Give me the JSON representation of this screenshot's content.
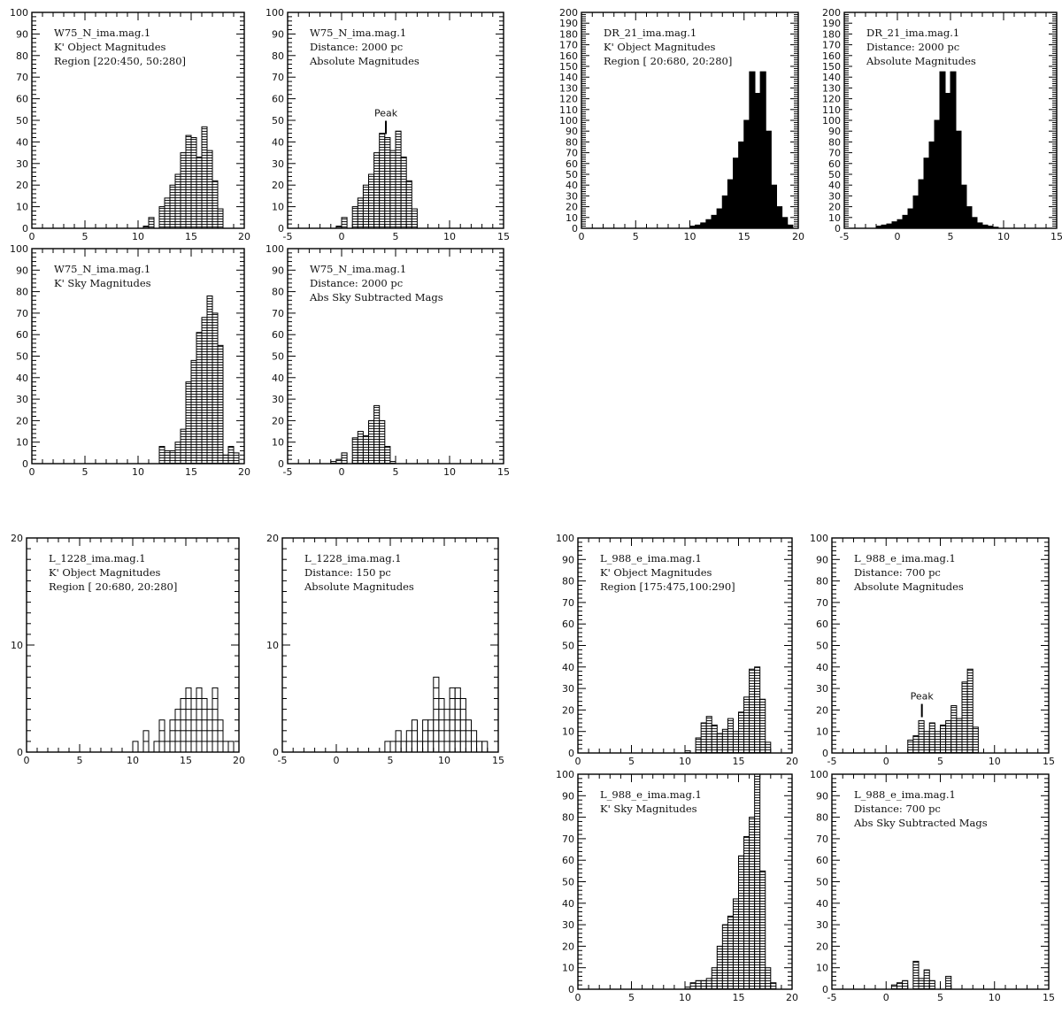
{
  "chart_data": [
    {
      "type": "bar",
      "style": "hatched",
      "lines": [
        "W75_N_ima.mag.1",
        "K' Object Magnitudes",
        "Region [220:450, 50:280]"
      ],
      "xlim": [
        0,
        20
      ],
      "ylim": [
        0,
        100
      ],
      "xticks": [
        0,
        5,
        10,
        15,
        20
      ],
      "yticks": [
        0,
        10,
        20,
        30,
        40,
        50,
        60,
        70,
        80,
        90,
        100
      ],
      "bin_width": 0.5,
      "bins": [
        [
          10.5,
          1
        ],
        [
          11,
          5
        ],
        [
          12,
          10
        ],
        [
          12.5,
          14
        ],
        [
          13,
          20
        ],
        [
          13.5,
          25
        ],
        [
          14,
          35
        ],
        [
          14.5,
          43
        ],
        [
          15,
          42
        ],
        [
          15.5,
          33
        ],
        [
          16,
          47
        ],
        [
          16.5,
          36
        ],
        [
          17,
          22
        ],
        [
          17.5,
          9
        ]
      ]
    },
    {
      "type": "bar",
      "style": "hatched",
      "lines": [
        "W75_N_ima.mag.1",
        "Distance: 2000   pc",
        "Absolute Magnitudes"
      ],
      "xlim": [
        -5,
        15
      ],
      "ylim": [
        0,
        100
      ],
      "xticks": [
        -5,
        0,
        5,
        10,
        15
      ],
      "yticks": [
        0,
        10,
        20,
        30,
        40,
        50,
        60,
        70,
        80,
        90,
        100
      ],
      "bin_width": 0.5,
      "bins": [
        [
          -0.5,
          1
        ],
        [
          0,
          5
        ],
        [
          1,
          10
        ],
        [
          1.5,
          14
        ],
        [
          2,
          20
        ],
        [
          2.5,
          25
        ],
        [
          3,
          35
        ],
        [
          3.5,
          44
        ],
        [
          4,
          42
        ],
        [
          4.5,
          36
        ],
        [
          5,
          45
        ],
        [
          5.5,
          33
        ],
        [
          6,
          22
        ],
        [
          6.5,
          9
        ]
      ],
      "peak": {
        "x": 4.1,
        "label": "Peak"
      }
    },
    {
      "type": "bar",
      "style": "solid",
      "lines": [
        "DR_21_ima.mag.1",
        "K' Object Magnitudes",
        "Region [ 20:680, 20:280]"
      ],
      "xlim": [
        0,
        20
      ],
      "ylim": [
        0,
        200
      ],
      "xticks": [
        0,
        5,
        10,
        15,
        20
      ],
      "yticks": [
        0,
        10,
        20,
        30,
        40,
        50,
        60,
        70,
        80,
        90,
        100,
        110,
        120,
        130,
        140,
        150,
        160,
        170,
        180,
        190,
        200
      ],
      "bin_width": 0.5,
      "bins": [
        [
          10,
          2
        ],
        [
          10.5,
          3
        ],
        [
          11,
          5
        ],
        [
          11.5,
          8
        ],
        [
          12,
          12
        ],
        [
          12.5,
          18
        ],
        [
          13,
          30
        ],
        [
          13.5,
          45
        ],
        [
          14,
          65
        ],
        [
          14.5,
          80
        ],
        [
          15,
          100
        ],
        [
          15.5,
          145
        ],
        [
          16,
          125
        ],
        [
          16.5,
          145
        ],
        [
          17,
          90
        ],
        [
          17.5,
          40
        ],
        [
          18,
          20
        ],
        [
          18.5,
          10
        ],
        [
          19,
          3
        ]
      ]
    },
    {
      "type": "bar",
      "style": "solid",
      "lines": [
        "DR_21_ima.mag.1",
        "Distance: 2000   pc",
        "Absolute Magnitudes"
      ],
      "xlim": [
        -5,
        15
      ],
      "ylim": [
        0,
        200
      ],
      "xticks": [
        -5,
        0,
        5,
        10,
        15
      ],
      "yticks": [
        0,
        10,
        20,
        30,
        40,
        50,
        60,
        70,
        80,
        90,
        100,
        110,
        120,
        130,
        140,
        150,
        160,
        170,
        180,
        190,
        200
      ],
      "bin_width": 0.5,
      "bins": [
        [
          -2,
          2
        ],
        [
          -1.5,
          3
        ],
        [
          -1,
          4
        ],
        [
          -0.5,
          6
        ],
        [
          0,
          8
        ],
        [
          0.5,
          12
        ],
        [
          1,
          18
        ],
        [
          1.5,
          30
        ],
        [
          2,
          45
        ],
        [
          2.5,
          65
        ],
        [
          3,
          80
        ],
        [
          3.5,
          100
        ],
        [
          4,
          145
        ],
        [
          4.5,
          125
        ],
        [
          5,
          145
        ],
        [
          5.5,
          90
        ],
        [
          6,
          40
        ],
        [
          6.5,
          20
        ],
        [
          7,
          10
        ],
        [
          7.5,
          5
        ],
        [
          8,
          3
        ],
        [
          8.5,
          2
        ],
        [
          9,
          1
        ]
      ]
    },
    {
      "type": "bar",
      "style": "hatched",
      "lines": [
        "W75_N_ima.mag.1",
        "K' Sky Magnitudes"
      ],
      "xlim": [
        0,
        20
      ],
      "ylim": [
        0,
        100
      ],
      "xticks": [
        0,
        5,
        10,
        15,
        20
      ],
      "yticks": [
        0,
        10,
        20,
        30,
        40,
        50,
        60,
        70,
        80,
        90,
        100
      ],
      "bin_width": 0.5,
      "bins": [
        [
          12,
          8
        ],
        [
          12.5,
          6
        ],
        [
          13,
          6
        ],
        [
          13.5,
          10
        ],
        [
          14,
          16
        ],
        [
          14.5,
          38
        ],
        [
          15,
          48
        ],
        [
          15.5,
          61
        ],
        [
          16,
          68
        ],
        [
          16.5,
          78
        ],
        [
          17,
          70
        ],
        [
          17.5,
          55
        ],
        [
          18,
          4
        ],
        [
          18.5,
          8
        ],
        [
          19,
          5
        ]
      ]
    },
    {
      "type": "bar",
      "style": "hatched",
      "lines": [
        "W75_N_ima.mag.1",
        "Distance: 2000   pc",
        "Abs Sky Subtracted Mags"
      ],
      "xlim": [
        -5,
        15
      ],
      "ylim": [
        0,
        100
      ],
      "xticks": [
        -5,
        0,
        5,
        10,
        15
      ],
      "yticks": [
        0,
        10,
        20,
        30,
        40,
        50,
        60,
        70,
        80,
        90,
        100
      ],
      "bin_width": 0.5,
      "bins": [
        [
          -1,
          1
        ],
        [
          -0.5,
          2
        ],
        [
          0,
          5
        ],
        [
          1,
          12
        ],
        [
          1.5,
          15
        ],
        [
          2,
          13
        ],
        [
          2.5,
          20
        ],
        [
          3,
          27
        ],
        [
          3.5,
          20
        ],
        [
          4,
          8
        ],
        [
          4.5,
          1
        ]
      ]
    },
    {
      "type": "bar",
      "style": "open",
      "lines": [
        "L_1228_ima.mag.1",
        "K' Object Magnitudes",
        "Region [ 20:680, 20:280]"
      ],
      "xlim": [
        0,
        20
      ],
      "ylim": [
        0,
        20
      ],
      "xticks": [
        0,
        5,
        10,
        15,
        20
      ],
      "yticks": [
        0,
        10,
        20
      ],
      "bin_width": 0.5,
      "bins": [
        [
          10,
          1
        ],
        [
          11,
          2
        ],
        [
          12,
          1
        ],
        [
          12.5,
          3
        ],
        [
          13,
          1
        ],
        [
          13.5,
          3
        ],
        [
          14,
          4
        ],
        [
          14.5,
          5
        ],
        [
          15,
          6
        ],
        [
          15.5,
          5
        ],
        [
          16,
          6
        ],
        [
          16.5,
          5
        ],
        [
          17,
          4
        ],
        [
          17.5,
          6
        ],
        [
          18,
          3
        ],
        [
          18.5,
          1
        ],
        [
          19,
          1
        ]
      ]
    },
    {
      "type": "bar",
      "style": "open",
      "lines": [
        "L_1228_ima.mag.1",
        "Distance: 150   pc",
        "Absolute Magnitudes"
      ],
      "xlim": [
        -5,
        15
      ],
      "ylim": [
        0,
        20
      ],
      "xticks": [
        -5,
        0,
        5,
        10,
        15
      ],
      "yticks": [
        0,
        10,
        20
      ],
      "bin_width": 0.5,
      "bins": [
        [
          4.5,
          1
        ],
        [
          5,
          1
        ],
        [
          5.5,
          2
        ],
        [
          6,
          1
        ],
        [
          6.5,
          2
        ],
        [
          7,
          3
        ],
        [
          7.5,
          1
        ],
        [
          8,
          3
        ],
        [
          8.5,
          3
        ],
        [
          9,
          7
        ],
        [
          9.5,
          5
        ],
        [
          10,
          4
        ],
        [
          10.5,
          6
        ],
        [
          11,
          6
        ],
        [
          11.5,
          5
        ],
        [
          12,
          3
        ],
        [
          12.5,
          2
        ],
        [
          13,
          1
        ],
        [
          13.5,
          1
        ]
      ]
    },
    {
      "type": "bar",
      "style": "hatched",
      "lines": [
        "L_988_e_ima.mag.1",
        "K' Object Magnitudes",
        "Region [175:475,100:290]"
      ],
      "xlim": [
        0,
        20
      ],
      "ylim": [
        0,
        100
      ],
      "xticks": [
        0,
        5,
        10,
        15,
        20
      ],
      "yticks": [
        0,
        10,
        20,
        30,
        40,
        50,
        60,
        70,
        80,
        90,
        100
      ],
      "bin_width": 0.5,
      "bins": [
        [
          10,
          1
        ],
        [
          11,
          7
        ],
        [
          11.5,
          14
        ],
        [
          12,
          17
        ],
        [
          12.5,
          13
        ],
        [
          13,
          9
        ],
        [
          13.5,
          11
        ],
        [
          14,
          16
        ],
        [
          14.5,
          10
        ],
        [
          15,
          19
        ],
        [
          15.5,
          26
        ],
        [
          16,
          39
        ],
        [
          16.5,
          40
        ],
        [
          17,
          25
        ],
        [
          17.5,
          5
        ]
      ]
    },
    {
      "type": "bar",
      "style": "hatched",
      "lines": [
        "L_988_e_ima.mag.1",
        "Distance: 700   pc",
        "Absolute Magnitudes"
      ],
      "xlim": [
        -5,
        15
      ],
      "ylim": [
        0,
        100
      ],
      "xticks": [
        -5,
        0,
        5,
        10,
        15
      ],
      "yticks": [
        0,
        10,
        20,
        30,
        40,
        50,
        60,
        70,
        80,
        90,
        100
      ],
      "bin_width": 0.5,
      "bins": [
        [
          2,
          6
        ],
        [
          2.5,
          8
        ],
        [
          3,
          15
        ],
        [
          3.5,
          10
        ],
        [
          4,
          14
        ],
        [
          4.5,
          10
        ],
        [
          5,
          13
        ],
        [
          5.5,
          15
        ],
        [
          6,
          22
        ],
        [
          6.5,
          16
        ],
        [
          7,
          33
        ],
        [
          7.5,
          39
        ],
        [
          8,
          12
        ]
      ],
      "peak": {
        "x": 3.3,
        "label": "Peak"
      }
    },
    {
      "type": "bar",
      "style": "hatched",
      "lines": [
        "L_988_e_ima.mag.1",
        "K' Sky Magnitudes"
      ],
      "xlim": [
        0,
        20
      ],
      "ylim": [
        0,
        100
      ],
      "xticks": [
        0,
        5,
        10,
        15,
        20
      ],
      "yticks": [
        0,
        10,
        20,
        30,
        40,
        50,
        60,
        70,
        80,
        90,
        100
      ],
      "bin_width": 0.5,
      "bins": [
        [
          10,
          1
        ],
        [
          10.5,
          3
        ],
        [
          11,
          4
        ],
        [
          11.5,
          4
        ],
        [
          12,
          5
        ],
        [
          12.5,
          10
        ],
        [
          13,
          20
        ],
        [
          13.5,
          30
        ],
        [
          14,
          34
        ],
        [
          14.5,
          42
        ],
        [
          15,
          62
        ],
        [
          15.5,
          71
        ],
        [
          16,
          80
        ],
        [
          16.5,
          100
        ],
        [
          17,
          55
        ],
        [
          17.5,
          10
        ],
        [
          18,
          3
        ]
      ]
    },
    {
      "type": "bar",
      "style": "hatched",
      "lines": [
        "L_988_e_ima.mag.1",
        "Distance: 700   pc",
        "Abs Sky Subtracted Mags"
      ],
      "xlim": [
        -5,
        15
      ],
      "ylim": [
        0,
        100
      ],
      "xticks": [
        -5,
        0,
        5,
        10,
        15
      ],
      "yticks": [
        0,
        10,
        20,
        30,
        40,
        50,
        60,
        70,
        80,
        90,
        100
      ],
      "bin_width": 0.5,
      "bins": [
        [
          0.5,
          2
        ],
        [
          1,
          3
        ],
        [
          1.5,
          4
        ],
        [
          2.5,
          13
        ],
        [
          3,
          5
        ],
        [
          3.5,
          9
        ],
        [
          4,
          4
        ],
        [
          5.5,
          6
        ]
      ]
    }
  ]
}
